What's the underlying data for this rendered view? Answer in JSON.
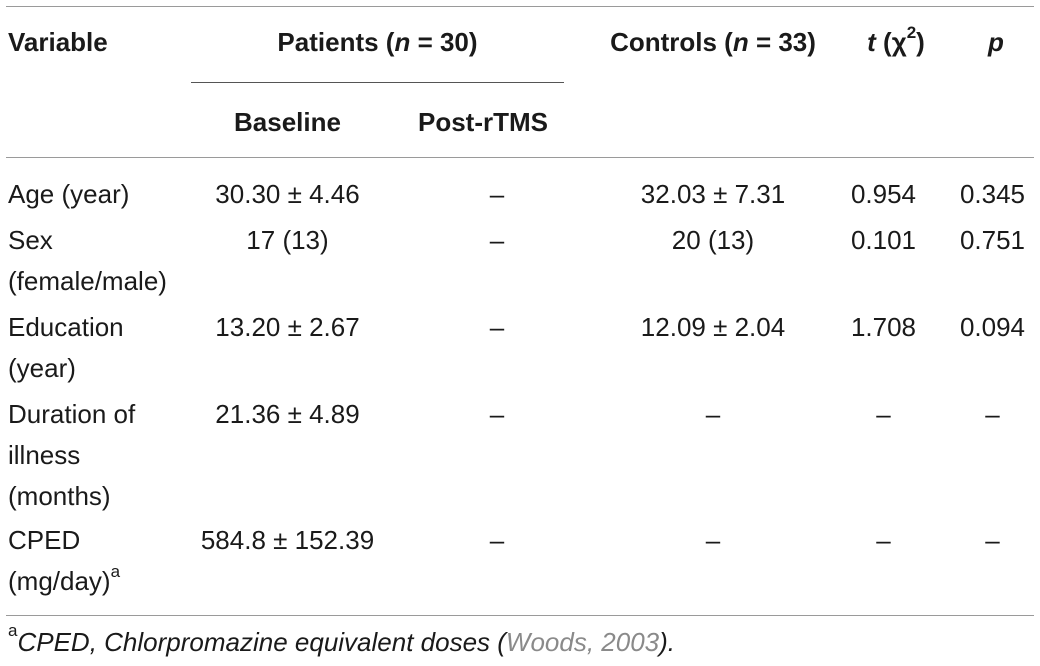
{
  "header": {
    "variable": "Variable",
    "patients_prefix": "Patients (",
    "patients_n": "n",
    "patients_suffix": " = 30)",
    "controls_prefix": "Controls (",
    "controls_n": "n",
    "controls_suffix": " = 33)",
    "t_label": "t",
    "chi_label": " (χ",
    "chi_sup": "2",
    "chi_close": ")",
    "p_label": "p",
    "baseline": "Baseline",
    "post_rtms": "Post-rTMS"
  },
  "rows": [
    {
      "label_lines": [
        "Age (year)"
      ],
      "baseline": "30.30 ± 4.46",
      "post": "–",
      "controls": "32.03 ± 7.31",
      "t": "0.954",
      "p": "0.345"
    },
    {
      "label_lines": [
        "Sex",
        "(female/male)"
      ],
      "baseline": "17 (13)",
      "post": "–",
      "controls": "20 (13)",
      "t": "0.101",
      "p": "0.751"
    },
    {
      "label_lines": [
        "Education",
        "(year)"
      ],
      "baseline": "13.20 ± 2.67",
      "post": "–",
      "controls": "12.09 ± 2.04",
      "t": "1.708",
      "p": "0.094"
    },
    {
      "label_lines": [
        "Duration of",
        "illness",
        "(months)"
      ],
      "baseline": "21.36 ± 4.89",
      "post": "–",
      "controls": "–",
      "t": "–",
      "p": "–"
    },
    {
      "label_lines": [
        "CPED",
        "(mg/day)"
      ],
      "label_sup": "a",
      "baseline": "584.8 ± 152.39",
      "post": "–",
      "controls": "–",
      "t": "–",
      "p": "–"
    }
  ],
  "footnote": {
    "marker": "a",
    "text_before": "CPED, Chlorpromazine equivalent doses (",
    "citation": "Woods, 2003",
    "text_after": ")."
  }
}
